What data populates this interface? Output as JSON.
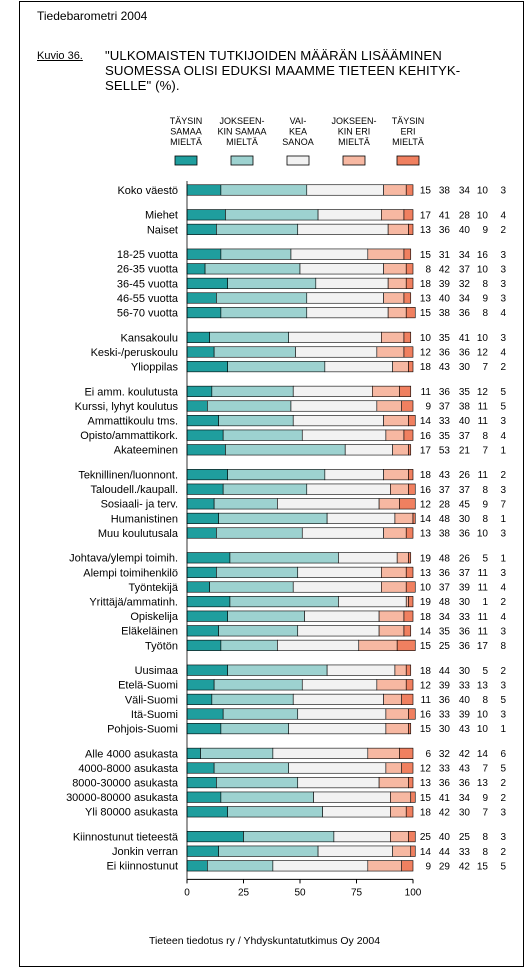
{
  "header": "Tiedebarometri 2004",
  "figure_label": "Kuvio 36.",
  "footer": "Tieteen tiedotus ry / Yhdyskuntatutkimus Oy 2004",
  "colors": {
    "series": [
      "#1f9e9e",
      "#9dd2d0",
      "#f2f2f2",
      "#f7b8a2",
      "#f08060"
    ]
  },
  "chart_data": {
    "type": "bar",
    "stacked": true,
    "orientation": "horizontal",
    "title": "\"ULKOMAISTEN TUTKIJOIDEN MÄÄRÄN LISÄÄMINEN SUOMESSA OLISI EDUKSI MAAMME TIETEEN KEHITYK-SELLE\" (%).",
    "title_lines": [
      "\"ULKOMAISTEN TUTKIJOIDEN MÄÄRÄN LISÄÄMINEN",
      "SUOMESSA OLISI EDUKSI MAAMME TIETEEN KEHITYK-",
      "SELLE\" (%)."
    ],
    "xlim": [
      0,
      100
    ],
    "xticks": [
      0,
      25,
      50,
      75,
      100
    ],
    "legend_position": "top",
    "series": [
      {
        "name_lines": [
          "TÄYSIN",
          "SAMAA",
          "MIELTÄ"
        ]
      },
      {
        "name_lines": [
          "JOKSEEN-",
          "KIN SAMAA",
          "MIELTÄ"
        ]
      },
      {
        "name_lines": [
          "VAI-",
          "KEA",
          "SANOA"
        ]
      },
      {
        "name_lines": [
          "JOKSEEN-",
          "KIN ERI",
          "MIELTÄ"
        ]
      },
      {
        "name_lines": [
          "TÄYSIN",
          "ERI",
          "MIELTÄ"
        ]
      }
    ],
    "groups": [
      {
        "rows": [
          {
            "label": "Koko väestö",
            "values": [
              15,
              38,
              34,
              10,
              3
            ]
          }
        ]
      },
      {
        "rows": [
          {
            "label": "Miehet",
            "values": [
              17,
              41,
              28,
              10,
              4
            ]
          },
          {
            "label": "Naiset",
            "values": [
              13,
              36,
              40,
              9,
              2
            ]
          }
        ]
      },
      {
        "rows": [
          {
            "label": "18-25 vuotta",
            "values": [
              15,
              31,
              34,
              16,
              3
            ]
          },
          {
            "label": "26-35 vuotta",
            "values": [
              8,
              42,
              37,
              10,
              3
            ]
          },
          {
            "label": "36-45 vuotta",
            "values": [
              18,
              39,
              32,
              8,
              3
            ]
          },
          {
            "label": "46-55 vuotta",
            "values": [
              13,
              40,
              34,
              9,
              3
            ]
          },
          {
            "label": "56-70 vuotta",
            "values": [
              15,
              38,
              36,
              8,
              4
            ]
          }
        ]
      },
      {
        "rows": [
          {
            "label": "Kansakoulu",
            "values": [
              10,
              35,
              41,
              10,
              3
            ]
          },
          {
            "label": "Keski-/peruskoulu",
            "values": [
              12,
              36,
              36,
              12,
              4
            ]
          },
          {
            "label": "Ylioppilas",
            "values": [
              18,
              43,
              30,
              7,
              2
            ]
          }
        ]
      },
      {
        "rows": [
          {
            "label": "Ei amm. koulutusta",
            "values": [
              11,
              36,
              35,
              12,
              5
            ]
          },
          {
            "label": "Kurssi, lyhyt koulutus",
            "values": [
              9,
              37,
              38,
              11,
              5
            ]
          },
          {
            "label": "Ammattikoulu tms.",
            "values": [
              14,
              33,
              40,
              11,
              3
            ]
          },
          {
            "label": "Opisto/ammattikork.",
            "values": [
              16,
              35,
              37,
              8,
              4
            ]
          },
          {
            "label": "Akateeminen",
            "values": [
              17,
              53,
              21,
              7,
              1
            ]
          }
        ]
      },
      {
        "rows": [
          {
            "label": "Teknillinen/luonnont.",
            "values": [
              18,
              43,
              26,
              11,
              2
            ]
          },
          {
            "label": "Taloudell./kaupall.",
            "values": [
              16,
              37,
              37,
              8,
              3
            ]
          },
          {
            "label": "Sosiaali- ja terv.",
            "values": [
              12,
              28,
              45,
              9,
              7
            ]
          },
          {
            "label": "Humanistinen",
            "values": [
              14,
              48,
              30,
              8,
              1
            ]
          },
          {
            "label": "Muu koulutusala",
            "values": [
              13,
              38,
              36,
              10,
              3
            ]
          }
        ]
      },
      {
        "rows": [
          {
            "label": "Johtava/ylempi toimih.",
            "values": [
              19,
              48,
              26,
              5,
              1
            ]
          },
          {
            "label": "Alempi toimihenkilö",
            "values": [
              13,
              36,
              37,
              11,
              3
            ]
          },
          {
            "label": "Työntekijä",
            "values": [
              10,
              37,
              39,
              11,
              4
            ]
          },
          {
            "label": "Yrittäjä/ammatinh.",
            "values": [
              19,
              48,
              30,
              1,
              2
            ]
          },
          {
            "label": "Opiskelija",
            "values": [
              18,
              34,
              33,
              11,
              4
            ]
          },
          {
            "label": "Eläkeläinen",
            "values": [
              14,
              35,
              36,
              11,
              3
            ]
          },
          {
            "label": "Työtön",
            "values": [
              15,
              25,
              36,
              17,
              8
            ]
          }
        ]
      },
      {
        "rows": [
          {
            "label": "Uusimaa",
            "values": [
              18,
              44,
              30,
              5,
              2
            ]
          },
          {
            "label": "Etelä-Suomi",
            "values": [
              12,
              39,
              33,
              13,
              3
            ]
          },
          {
            "label": "Väli-Suomi",
            "values": [
              11,
              36,
              40,
              8,
              5
            ]
          },
          {
            "label": "Itä-Suomi",
            "values": [
              16,
              33,
              39,
              10,
              3
            ]
          },
          {
            "label": "Pohjois-Suomi",
            "values": [
              15,
              30,
              43,
              10,
              1
            ]
          }
        ]
      },
      {
        "rows": [
          {
            "label": "Alle 4000 asukasta",
            "values": [
              6,
              32,
              42,
              14,
              6
            ]
          },
          {
            "label": "4000-8000 asukasta",
            "values": [
              12,
              33,
              43,
              7,
              5
            ]
          },
          {
            "label": "8000-30000 asukasta",
            "values": [
              13,
              36,
              36,
              13,
              2
            ]
          },
          {
            "label": "30000-80000 asukasta",
            "values": [
              15,
              41,
              34,
              9,
              2
            ]
          },
          {
            "label": "Yli 80000 asukasta",
            "values": [
              18,
              42,
              30,
              7,
              3
            ]
          }
        ]
      },
      {
        "rows": [
          {
            "label": "Kiinnostunut tieteestä",
            "values": [
              25,
              40,
              25,
              8,
              3
            ]
          },
          {
            "label": "Jonkin verran",
            "values": [
              14,
              44,
              33,
              8,
              2
            ]
          },
          {
            "label": "Ei kiinnostunut",
            "values": [
              9,
              29,
              42,
              15,
              5
            ]
          }
        ]
      }
    ]
  }
}
